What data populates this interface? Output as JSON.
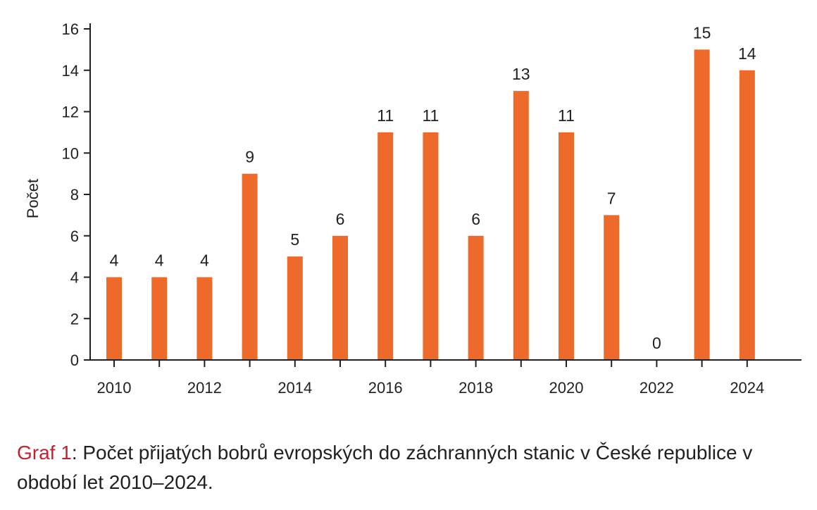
{
  "chart_data": {
    "type": "bar",
    "categories": [
      "2010",
      "2011",
      "2012",
      "2013",
      "2014",
      "2015",
      "2016",
      "2017",
      "2018",
      "2019",
      "2020",
      "2021",
      "2022",
      "2023",
      "2024"
    ],
    "values": [
      4,
      4,
      4,
      9,
      5,
      6,
      11,
      11,
      6,
      13,
      11,
      7,
      0,
      15,
      14
    ],
    "xtick_labels": [
      "2010",
      "2012",
      "2014",
      "2016",
      "2018",
      "2020",
      "2022",
      "2024"
    ],
    "ylabel": "Počet",
    "ylim": [
      0,
      16
    ],
    "yticks": [
      0,
      2,
      4,
      6,
      8,
      10,
      12,
      14,
      16
    ],
    "grid": false,
    "data_labels": true,
    "bar_color": "#ee6a2a",
    "axis_color": "#231f20"
  },
  "caption": {
    "prefix": "Graf 1",
    "text": ": Počet přijatých bobrů evropských do záchranných stanic v České republice v období let 2010–2024.",
    "prefix_color": "#c8202f"
  }
}
